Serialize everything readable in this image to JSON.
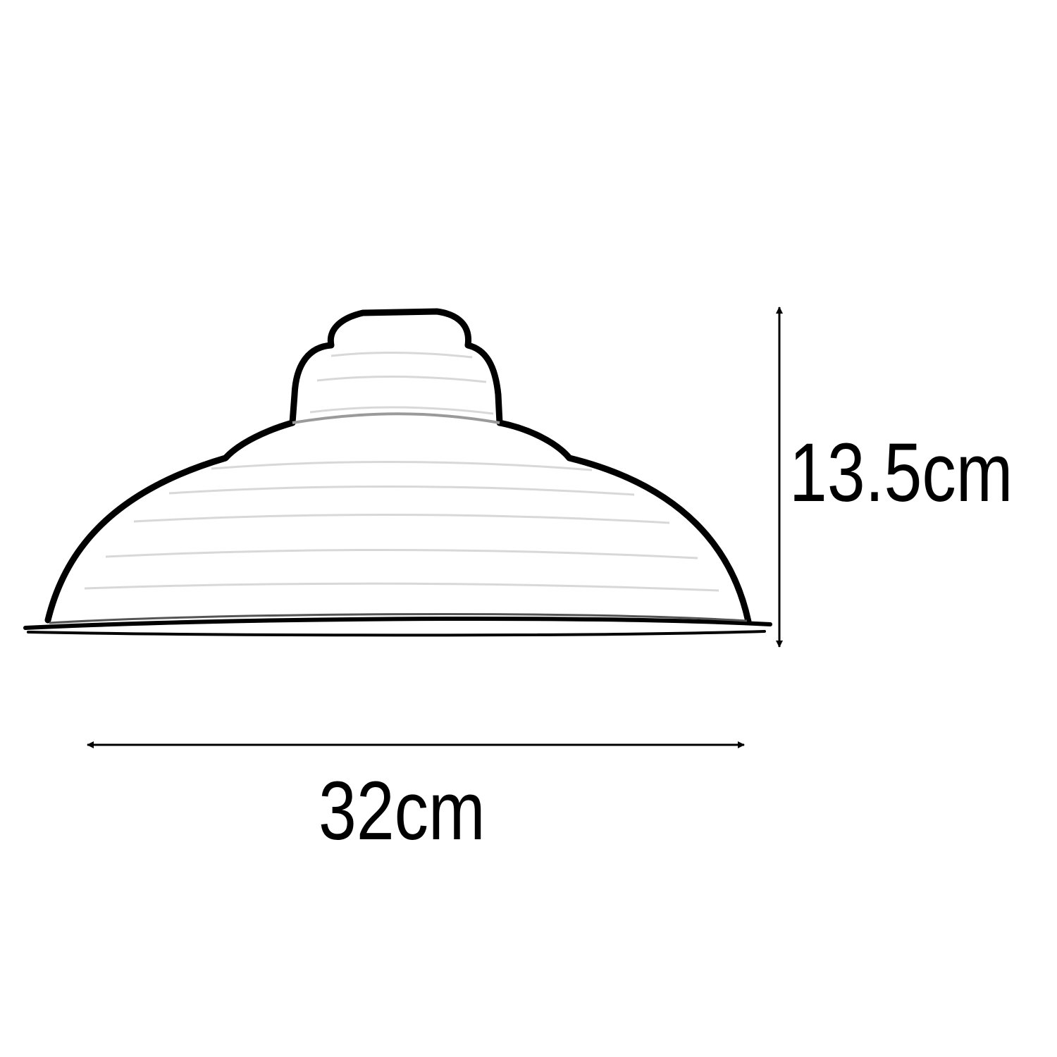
{
  "dimensions": {
    "height_label": "13.5cm",
    "width_label": "32cm"
  },
  "product": {
    "icon": "lamp-shade-icon"
  },
  "colors": {
    "outline": "#000000",
    "background": "#ffffff",
    "shading": "#bdbdbd"
  }
}
